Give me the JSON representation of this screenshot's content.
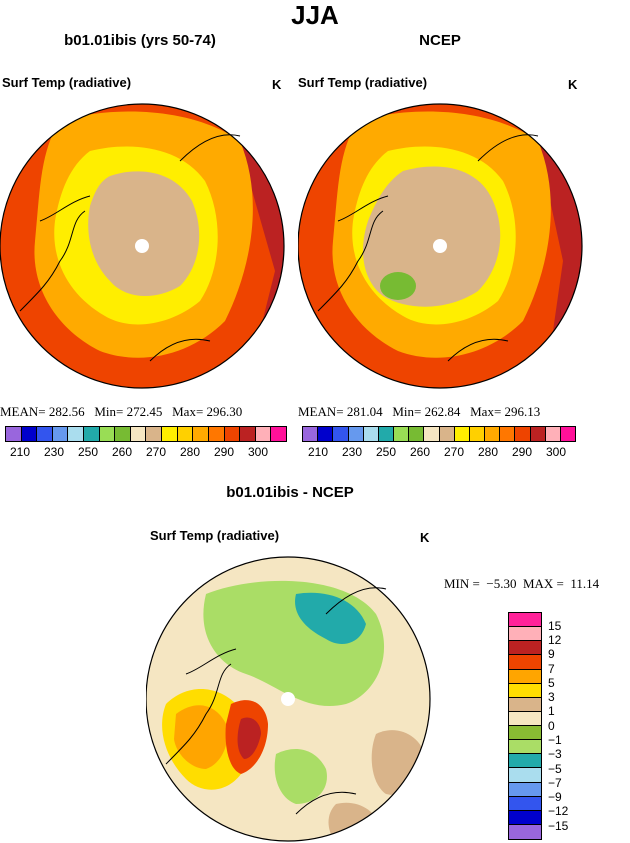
{
  "title": "JJA",
  "left_panel": {
    "title": "b01.01ibis (yrs 50-74)",
    "variable": "Surf Temp (radiative)",
    "units": "K",
    "stats": "MEAN= 282.56   Min= 272.45   Max= 296.30"
  },
  "right_panel": {
    "title": "NCEP",
    "variable": "Surf Temp (radiative)",
    "units": "K",
    "stats": "MEAN= 281.04   Min= 262.84   Max= 296.13"
  },
  "diff_panel": {
    "title": "b01.01ibis - NCEP",
    "variable": "Surf Temp (radiative)",
    "units": "K",
    "stats": "MIN =  −5.30  MAX =  11.14"
  },
  "abs_colorbar": {
    "colors": [
      "#9966dd",
      "#0000cc",
      "#3355ee",
      "#6699ee",
      "#aaddee",
      "#22aaaa",
      "#99dd55",
      "#77bb33",
      "#f5e6c2",
      "#d9b48a",
      "#ffee00",
      "#ffd000",
      "#ffaa00",
      "#ff7700",
      "#ee4400",
      "#bb2222",
      "#ffb0b8",
      "#ff1199"
    ],
    "labels": [
      "210",
      "230",
      "250",
      "260",
      "270",
      "280",
      "290",
      "300"
    ]
  },
  "diff_colorbar": {
    "colors": [
      "#ff2299",
      "#ffb0b8",
      "#bb2222",
      "#ee4400",
      "#ffa500",
      "#ffdd00",
      "#d9b48a",
      "#f5e6c2",
      "#88bb33",
      "#aadd66",
      "#22aaaa",
      "#aaddee",
      "#6699ee",
      "#3355ee",
      "#0000cc",
      "#9966dd"
    ],
    "labels": [
      "15",
      "12",
      "9",
      "7",
      "5",
      "3",
      "1",
      "0",
      "−1",
      "−3",
      "−5",
      "−7",
      "−9",
      "−12",
      "−15"
    ]
  }
}
